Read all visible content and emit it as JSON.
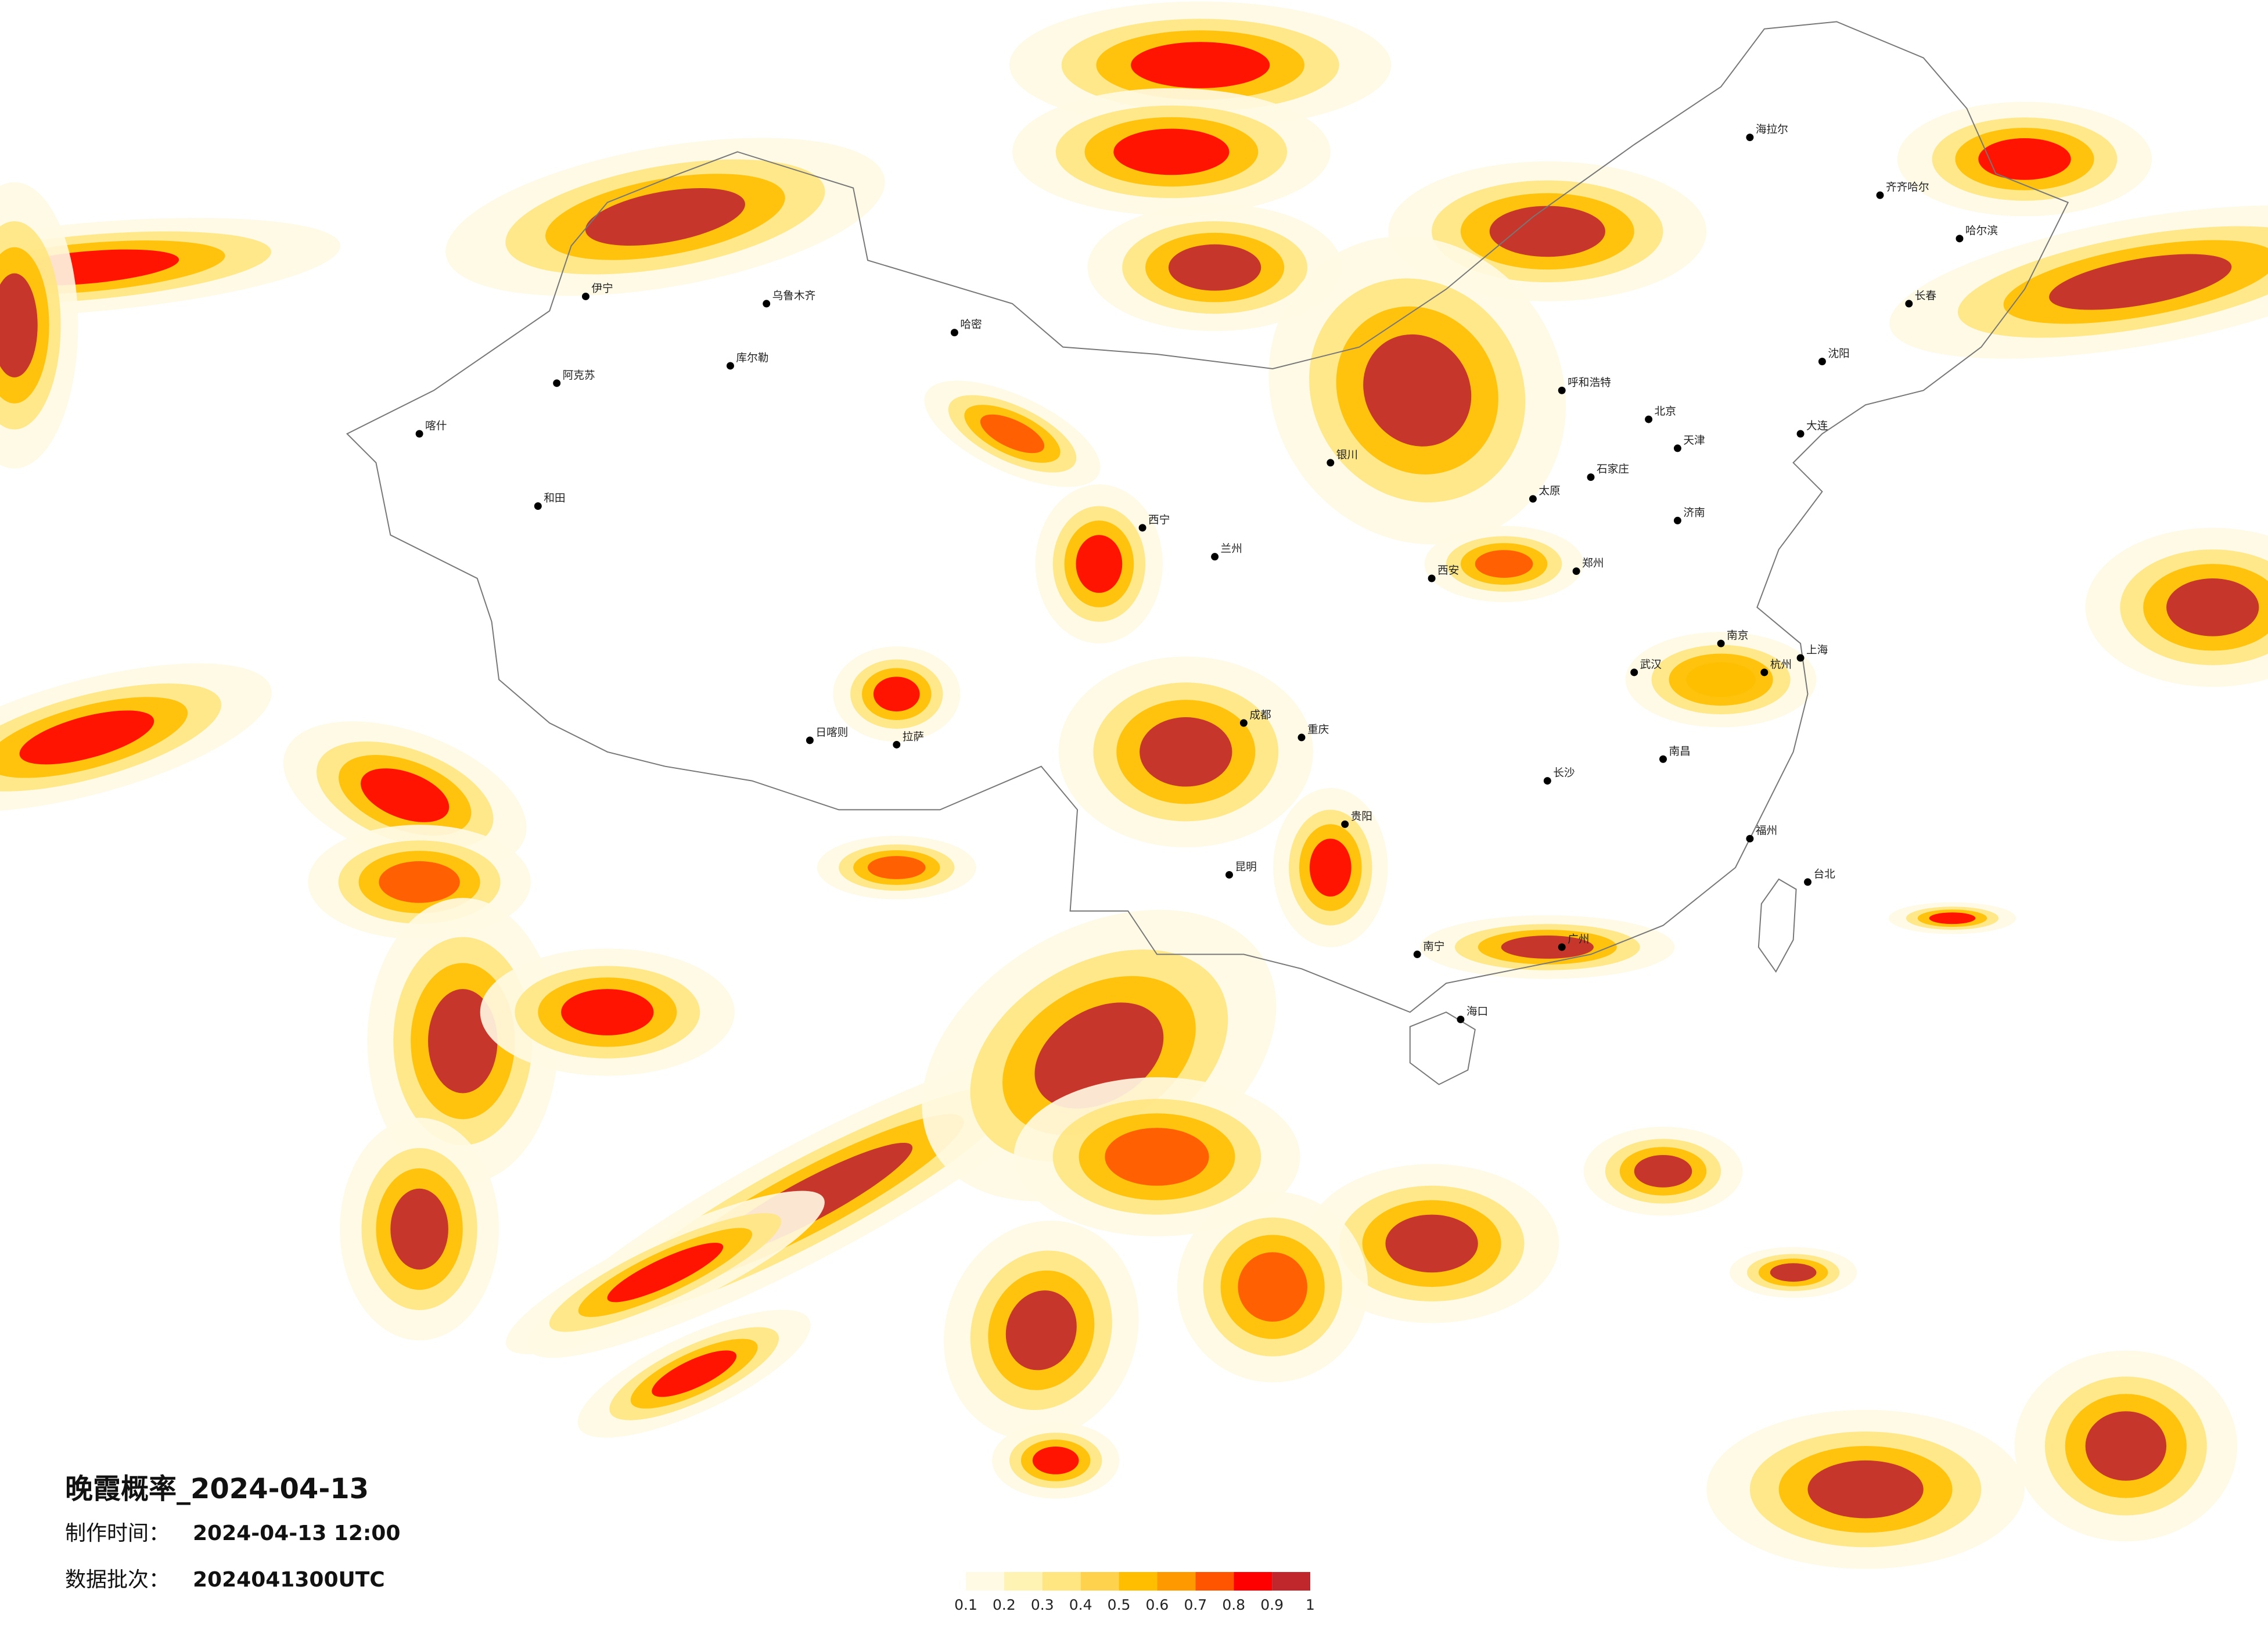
{
  "header": {
    "title": "晚霞概率_2024-04-13",
    "made_label": "制作时间：",
    "made_time": "2024-04-13 12:00",
    "batch_label": "数据批次：",
    "batch": "2024041300UTC"
  },
  "legend": {
    "colors": [
      "#fffae3",
      "#fff3b3",
      "#ffe680",
      "#ffd24d",
      "#ffbf00",
      "#ff9900",
      "#ff5500",
      "#ff0000",
      "#c0272d"
    ],
    "ticks": [
      0.1,
      0.2,
      0.3,
      0.4,
      0.5,
      0.6,
      0.7,
      0.8,
      0.9,
      1
    ]
  },
  "cities": [
    "乌鲁木齐",
    "伊宁",
    "阿克苏",
    "喀什",
    "和田",
    "库尔勒",
    "哈密",
    "拉萨",
    "日喀则",
    "西宁",
    "兰州",
    "银川",
    "呼和浩特",
    "北京",
    "天津",
    "石家庄",
    "太原",
    "济南",
    "郑州",
    "西安",
    "武汉",
    "长沙",
    "南昌",
    "杭州",
    "南京",
    "上海",
    "福州",
    "广州",
    "南宁",
    "海口",
    "昆明",
    "贵阳",
    "重庆",
    "成都",
    "哈尔滨",
    "长春",
    "沈阳",
    "大连",
    "海拉尔",
    "齐齐哈尔",
    "台北"
  ]
}
